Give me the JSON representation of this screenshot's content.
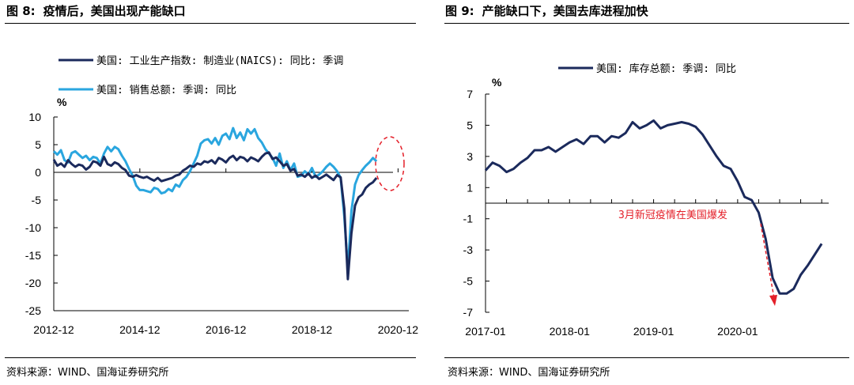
{
  "figures": [
    {
      "number_label": "图 8:",
      "title": "疫情后，美国出现产能缺口",
      "source": "资料来源：WIND、国海证券研究所"
    },
    {
      "number_label": "图 9:",
      "title": "产能缺口下，美国去库进程加快",
      "source": "资料来源：WIND、国海证券研究所"
    }
  ],
  "chart_data": [
    {
      "type": "line",
      "ylabel": "%",
      "ylim": [
        -25,
        10
      ],
      "yticks": [
        "10",
        "5",
        "0",
        "-5",
        "-10",
        "-15",
        "-20",
        "-25"
      ],
      "xticks": [
        "2012-12",
        "2014-12",
        "2016-12",
        "2018-12",
        "2020-12"
      ],
      "x_start": "2012-12",
      "x_end": "2021-03",
      "legend_position": "top-left",
      "annotation": "dashed red ellipse around recent data",
      "series": [
        {
          "name": "美国: 工业生产指数: 制造业(NAICS): 同比: 季调",
          "color": "#1b2a5c",
          "values": [
            2.3,
            1.2,
            1.6,
            1.0,
            2.2,
            1.5,
            1.0,
            1.4,
            1.2,
            0.5,
            1.0,
            2.0,
            1.8,
            1.2,
            2.8,
            1.5,
            1.2,
            1.8,
            1.5,
            0.8,
            0.4,
            -0.6,
            -0.8,
            -0.5,
            -0.8,
            -1.0,
            -0.8,
            -1.2,
            -1.5,
            -1.0,
            -1.6,
            -1.4,
            -1.2,
            -1.0,
            -0.6,
            -0.4,
            0.3,
            0.7,
            1.2,
            1.0,
            1.6,
            1.4,
            2.0,
            1.8,
            2.2,
            1.6,
            2.6,
            2.3,
            1.8,
            2.6,
            3.0,
            2.2,
            2.8,
            2.6,
            2.0,
            2.7,
            2.4,
            2.0,
            2.8,
            3.4,
            3.6,
            2.4,
            2.7,
            2.0,
            1.2,
            1.5,
            0.3,
            0.6,
            -0.6,
            -0.4,
            -0.8,
            -0.2,
            -1.0,
            -0.6,
            -1.2,
            -0.8,
            -0.4,
            -0.9,
            -1.4,
            -0.5,
            -0.9,
            -6.5,
            -19.3,
            -11.0,
            -6.0,
            -4.5,
            -4.0,
            -2.8,
            -2.2,
            -1.8,
            -1.0
          ]
        },
        {
          "name": "美国: 销售总额: 季调: 同比",
          "color": "#2aa6df",
          "values": [
            3.8,
            3.2,
            4.0,
            2.2,
            1.8,
            3.5,
            3.8,
            3.2,
            2.6,
            3.0,
            2.2,
            2.8,
            2.6,
            1.6,
            3.4,
            4.6,
            3.8,
            4.6,
            4.2,
            3.0,
            2.0,
            0.6,
            -0.6,
            -2.4,
            -3.2,
            -3.2,
            -3.4,
            -3.6,
            -2.8,
            -3.0,
            -3.8,
            -3.6,
            -3.0,
            -3.4,
            -2.2,
            -2.6,
            -1.4,
            -0.8,
            0.2,
            1.6,
            3.0,
            5.2,
            5.8,
            6.0,
            5.2,
            6.2,
            5.0,
            6.6,
            7.0,
            6.0,
            8.0,
            6.2,
            7.2,
            5.8,
            7.8,
            7.0,
            7.8,
            6.2,
            5.4,
            4.2,
            3.4,
            2.6,
            1.2,
            3.4,
            0.8,
            2.0,
            0.4,
            1.6,
            -0.8,
            -0.6,
            0.2,
            -0.4,
            0.8,
            -0.8,
            -0.4,
            0.2,
            1.0,
            1.6,
            1.0,
            0.2,
            -1.0,
            -8.0,
            -17.6,
            -7.0,
            -2.2,
            -0.5,
            0.4,
            1.2,
            1.8,
            2.6,
            2.0
          ]
        }
      ]
    },
    {
      "type": "line",
      "ylabel": "%",
      "ylim": [
        -7,
        7
      ],
      "yticks": [
        "7",
        "5",
        "3",
        "1",
        "-1",
        "-3",
        "-5",
        "-7"
      ],
      "xticks": [
        "2017-01",
        "2018-01",
        "2019-01",
        "2020-01"
      ],
      "x_start": "2017-01",
      "x_end": "2021-02",
      "legend_position": "top-center",
      "annotation_text": "3月新冠疫情在美国爆发",
      "series": [
        {
          "name": "美国: 库存总额: 季调: 同比",
          "color": "#1b2a5c",
          "values": [
            2.1,
            2.6,
            2.4,
            2.0,
            2.2,
            2.6,
            2.9,
            3.4,
            3.4,
            3.6,
            3.3,
            3.6,
            3.9,
            4.1,
            3.8,
            4.3,
            4.3,
            3.9,
            4.3,
            4.2,
            4.5,
            5.2,
            4.8,
            5.0,
            5.3,
            4.8,
            5.0,
            5.1,
            5.2,
            5.1,
            4.9,
            4.4,
            3.7,
            3.0,
            2.4,
            2.2,
            1.4,
            0.4,
            0.2,
            -0.6,
            -2.3,
            -4.8,
            -5.8,
            -5.8,
            -5.5,
            -4.6,
            -4.0,
            -3.3,
            -2.6
          ]
        }
      ]
    }
  ]
}
